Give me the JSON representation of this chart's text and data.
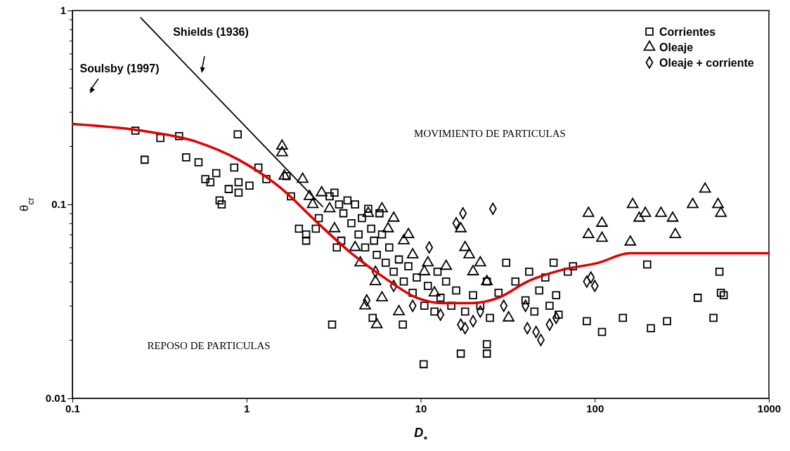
{
  "chart_data": {
    "type": "scatter",
    "xlabel": "D$_{*}$",
    "ylabel": "θ$_{cr}$",
    "log": "xy",
    "grid": false,
    "legend": "top right",
    "xlim": [
      0.1,
      1000
    ],
    "xticks": [
      0.1,
      1,
      10,
      100,
      1000
    ],
    "ylim": [
      0.01,
      1
    ],
    "yticks": [
      0.01,
      {
        "value": 0.02,
        "label": null
      },
      {
        "value": 0.03,
        "label": null
      },
      {
        "value": 0.04,
        "label": null
      },
      {
        "value": 0.05,
        "label": null
      },
      {
        "value": 0.06,
        "label": null
      },
      {
        "value": 0.07,
        "label": null
      },
      {
        "value": 0.08,
        "label": null
      },
      {
        "value": 0.09,
        "label": null
      },
      0.1,
      {
        "value": 0.2,
        "label": null
      },
      {
        "value": 0.3,
        "label": null
      },
      {
        "value": 0.4,
        "label": null
      },
      {
        "value": 0.5,
        "label": null
      },
      {
        "value": 0.6,
        "label": null
      },
      {
        "value": 0.7,
        "label": null
      },
      {
        "value": 0.8,
        "label": null
      },
      {
        "value": 0.9,
        "label": null
      },
      1
    ],
    "series": [
      {
        "name": "Corrientes",
        "marker": "square",
        "color": "#000000",
        "x": [
          0.23,
          0.26,
          0.32,
          0.41,
          0.45,
          0.53,
          0.58,
          0.62,
          0.67,
          0.7,
          0.72,
          0.79,
          0.85,
          0.89,
          0.9,
          0.9,
          1.04,
          1.17,
          1.3,
          1.7,
          1.8,
          2.0,
          2.2,
          2.2,
          3,
          3.2,
          3.4,
          3.6,
          3.8,
          4,
          4.2,
          4.4,
          4.6,
          4.8,
          5,
          5.2,
          5.4,
          5.6,
          5.8,
          6,
          6.3,
          6.6,
          7,
          7.5,
          8,
          8.5,
          9,
          9.5,
          10.5,
          11,
          12,
          12.5,
          13,
          14,
          15,
          16,
          18,
          20,
          22,
          24,
          25,
          28,
          31,
          35,
          40,
          42,
          45,
          48,
          52,
          55,
          58,
          60,
          62,
          70,
          75,
          2.6,
          2.5,
          3.5,
          3.3,
          3.1,
          5.3,
          7.9,
          10.4,
          17,
          24,
          24,
          90,
          110,
          145,
          210,
          260,
          390,
          480,
          520,
          530,
          550,
          200
        ],
        "values": [
          0.24,
          0.17,
          0.22,
          0.225,
          0.175,
          0.165,
          0.135,
          0.13,
          0.145,
          0.105,
          0.1,
          0.12,
          0.155,
          0.23,
          0.115,
          0.13,
          0.125,
          0.155,
          0.135,
          0.14,
          0.11,
          0.075,
          0.07,
          0.065,
          0.11,
          0.115,
          0.1,
          0.09,
          0.105,
          0.08,
          0.1,
          0.07,
          0.085,
          0.06,
          0.095,
          0.075,
          0.065,
          0.055,
          0.09,
          0.07,
          0.05,
          0.06,
          0.045,
          0.052,
          0.04,
          0.048,
          0.035,
          0.042,
          0.03,
          0.038,
          0.028,
          0.045,
          0.033,
          0.04,
          0.03,
          0.036,
          0.028,
          0.034,
          0.03,
          0.04,
          0.026,
          0.035,
          0.05,
          0.04,
          0.032,
          0.045,
          0.028,
          0.036,
          0.042,
          0.03,
          0.05,
          0.034,
          0.027,
          0.045,
          0.048,
          0.085,
          0.075,
          0.065,
          0.06,
          0.024,
          0.026,
          0.024,
          0.015,
          0.017,
          0.019,
          0.017,
          0.025,
          0.022,
          0.026,
          0.023,
          0.025,
          0.033,
          0.026,
          0.045,
          0.035,
          0.034,
          0.049
        ]
      },
      {
        "name": "Oleaje",
        "marker": "triangle",
        "color": "#000000",
        "x": [
          1.6,
          1.6,
          1.65,
          2.1,
          2.3,
          2.4,
          2.7,
          3,
          3.2,
          4.2,
          4.5,
          5,
          5.5,
          6,
          6.5,
          7,
          8,
          8.5,
          9,
          10.5,
          11,
          12,
          14,
          17,
          18,
          19,
          20,
          22,
          24,
          4.8,
          7.5,
          6,
          5.6,
          32,
          92,
          92,
          110,
          110,
          165,
          180,
          195,
          240,
          280,
          290,
          365,
          430,
          510,
          530,
          160
        ],
        "values": [
          0.2,
          0.185,
          0.14,
          0.135,
          0.11,
          0.1,
          0.115,
          0.095,
          0.075,
          0.06,
          0.05,
          0.09,
          0.04,
          0.095,
          0.075,
          0.085,
          0.065,
          0.07,
          0.055,
          0.045,
          0.05,
          0.035,
          0.048,
          0.075,
          0.06,
          0.055,
          0.045,
          0.05,
          0.04,
          0.03,
          0.028,
          0.033,
          0.024,
          0.026,
          0.09,
          0.07,
          0.08,
          0.067,
          0.1,
          0.085,
          0.09,
          0.09,
          0.085,
          0.07,
          0.1,
          0.12,
          0.1,
          0.09,
          0.064
        ]
      },
      {
        "name": "Oleaje + corriente",
        "marker": "diamond",
        "color": "#000000",
        "x": [
          17.5,
          16,
          26,
          11.2,
          4.9,
          17,
          18,
          41,
          46,
          49,
          40,
          5.5,
          7,
          9,
          13,
          20,
          22,
          30,
          55,
          60,
          90,
          95,
          100
        ],
        "values": [
          0.09,
          0.08,
          0.095,
          0.06,
          0.032,
          0.024,
          0.023,
          0.023,
          0.022,
          0.02,
          0.03,
          0.045,
          0.038,
          0.03,
          0.027,
          0.025,
          0.028,
          0.03,
          0.024,
          0.026,
          0.04,
          0.042,
          0.038
        ]
      },
      {
        "type": "line",
        "marker": "none",
        "line_style": "solid",
        "color": "#000000",
        "x": [
          0.246,
          2.75
        ],
        "values": [
          0.92,
          0.097
        ]
      },
      {
        "type": "line",
        "marker": "none",
        "line_style": "solid",
        "color": "#e00000",
        "x": [
          0.1,
          0.25,
          0.52,
          0.9,
          1.6,
          2.5,
          4,
          6.4,
          9.5,
          13.4,
          19.5,
          28,
          41,
          65,
          105,
          158,
          180,
          1000
        ],
        "values": [
          0.26,
          0.24,
          0.21,
          0.17,
          0.12,
          0.082,
          0.056,
          0.041,
          0.033,
          0.031,
          0.031,
          0.033,
          0.04,
          0.046,
          0.05,
          0.056,
          0.056,
          0.056
        ]
      }
    ],
    "annotations": [
      "Shields (1936)",
      "Soulsby (1997)",
      "MOVIMIENTO DE PARTICULAS",
      "REPOSO DE PARTICULAS"
    ]
  }
}
